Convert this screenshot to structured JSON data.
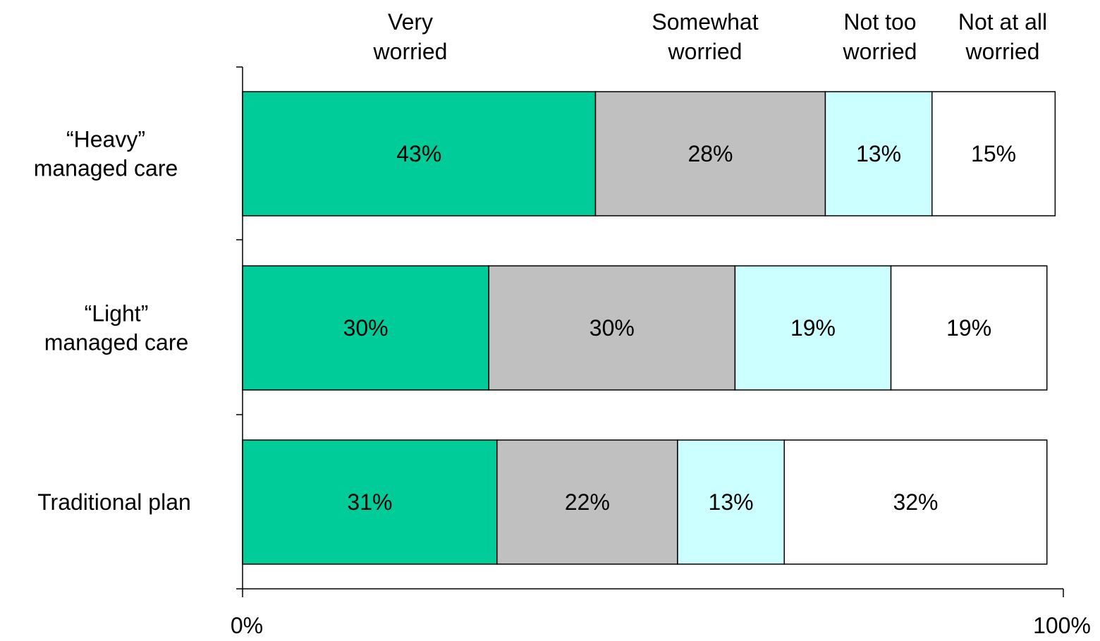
{
  "chart_data": {
    "type": "bar",
    "orientation": "horizontal",
    "stacked": true,
    "categories": [
      "“Heavy” managed care",
      "“Light” managed care",
      "Traditional plan"
    ],
    "category_lines": [
      [
        "“Heavy”",
        "managed care"
      ],
      [
        "“Light”",
        "managed care"
      ],
      [
        "Traditional plan"
      ]
    ],
    "series": [
      {
        "name": "Very worried",
        "name_lines": [
          "Very",
          "worried"
        ],
        "color": "#00CC99",
        "values": [
          43,
          30,
          31
        ]
      },
      {
        "name": "Somewhat worried",
        "name_lines": [
          "Somewhat",
          "worried"
        ],
        "color": "#C0C0C0",
        "values": [
          28,
          30,
          22
        ]
      },
      {
        "name": "Not too worried",
        "name_lines": [
          "Not too",
          "worried"
        ],
        "color": "#CCFFFF",
        "values": [
          13,
          19,
          13
        ]
      },
      {
        "name": "Not at all worried",
        "name_lines": [
          "Not at all",
          "worried"
        ],
        "color": "#FFFFFF",
        "values": [
          15,
          19,
          32
        ]
      }
    ],
    "value_labels": [
      [
        "43%",
        "28%",
        "13%",
        "15%"
      ],
      [
        "30%",
        "30%",
        "19%",
        "19%"
      ],
      [
        "31%",
        "22%",
        "13%",
        "32%"
      ]
    ],
    "xlim": [
      0,
      100
    ],
    "x_tick_labels": [
      "0%",
      "100%"
    ],
    "legend_placement": "top",
    "grid": false,
    "title": "",
    "xlabel": "",
    "ylabel": ""
  }
}
